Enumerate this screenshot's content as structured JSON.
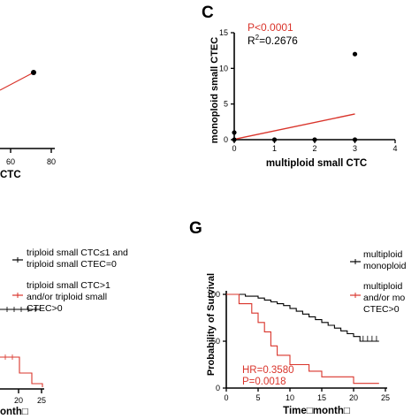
{
  "panels": {
    "c": {
      "letter": "C",
      "stats": {
        "p": "P<0.0001",
        "r2_prefix": "R",
        "r2_sup": "2",
        "r2_value": "=0.2676"
      },
      "chart_data": {
        "type": "scatter",
        "xlabel": "multiploid small CTC",
        "ylabel": "monoploid small CTEC",
        "xlim": [
          0,
          4
        ],
        "ylim": [
          0,
          15
        ],
        "x_ticks": [
          "0",
          "1",
          "2",
          "3",
          "4"
        ],
        "y_ticks": [
          "0",
          "5",
          "10",
          "15"
        ],
        "points": [
          {
            "x": 0,
            "y": 0
          },
          {
            "x": 0,
            "y": 1
          },
          {
            "x": 1,
            "y": 0
          },
          {
            "x": 2,
            "y": 0
          },
          {
            "x": 3,
            "y": 0
          },
          {
            "x": 3,
            "y": 12
          }
        ],
        "fit_line": [
          {
            "x": 0,
            "y": 0.05
          },
          {
            "x": 3,
            "y": 3.6
          }
        ],
        "colors": {
          "points": "#000000",
          "fit": "#d9342b"
        }
      }
    },
    "b_partial": {
      "x_axis_label": "CTC",
      "chart_data": {
        "type": "line",
        "x_ticks": [
          "60",
          "80"
        ],
        "points": [
          {
            "x": 70,
            "y": 2.5
          }
        ],
        "fit_line_color": "#d9342b"
      }
    },
    "f_partial": {
      "legend": [
        {
          "line1": "triploid small CTC≤1 and",
          "line2": "triploid small CTEC=0",
          "color": "#000000"
        },
        {
          "line1": "triploid small CTC>1",
          "line2": "and/or triploid small",
          "line3": "CTEC>0",
          "color": "#d9342b"
        }
      ],
      "x_axis_label": "onth□",
      "chart_data": {
        "type": "line",
        "x_ticks": [
          "20",
          "25"
        ],
        "series": [
          {
            "color": "#000000",
            "x": [
              0,
              26
            ],
            "y": [
              49,
              49
            ]
          },
          {
            "color": "#d9342b",
            "x": [
              0,
              13,
              13,
              19,
              19,
              24
            ],
            "y": [
              27,
              27,
              13,
              13,
              5,
              5
            ]
          }
        ]
      }
    },
    "g": {
      "letter": "G",
      "stats": {
        "hr": "HR=0.3580",
        "p": "P=0.0018"
      },
      "legend": [
        {
          "line1": "multiploid",
          "line2": "monoploid",
          "color": "#000000"
        },
        {
          "line1": "multiploid",
          "line2": "and/or mo",
          "line3": "CTEC>0",
          "color": "#d9342b"
        }
      ],
      "chart_data": {
        "type": "line",
        "xlabel": "Time□month□",
        "ylabel": "Probability of Survival",
        "xlim": [
          0,
          25
        ],
        "ylim": [
          0,
          100
        ],
        "x_ticks": [
          "0",
          "5",
          "10",
          "15",
          "20",
          "25"
        ],
        "y_ticks": [
          "0",
          "50",
          "100"
        ],
        "series": [
          {
            "color": "#000000",
            "x": [
              0,
              3,
              3,
              5,
              5,
              6,
              6,
              7,
              7,
              8,
              8,
              9,
              9,
              10,
              10,
              11,
              11,
              12,
              12,
              13,
              13,
              14,
              14,
              15,
              15,
              16,
              16,
              17,
              17,
              18,
              18,
              19,
              19,
              20,
              20,
              21,
              21,
              24
            ],
            "y": [
              100,
              100,
              98,
              98,
              96,
              96,
              94,
              94,
              92,
              92,
              90,
              90,
              88,
              88,
              85,
              85,
              82,
              82,
              79,
              79,
              76,
              76,
              73,
              73,
              70,
              70,
              67,
              67,
              64,
              64,
              61,
              61,
              58,
              58,
              55,
              55,
              50,
              50
            ]
          },
          {
            "color": "#d9342b",
            "x": [
              0,
              2,
              2,
              4,
              4,
              5,
              5,
              6,
              6,
              7,
              7,
              8,
              8,
              10,
              10,
              13,
              13,
              15,
              15,
              20,
              20,
              24
            ],
            "y": [
              100,
              100,
              90,
              90,
              80,
              80,
              70,
              70,
              60,
              60,
              45,
              45,
              35,
              35,
              25,
              25,
              18,
              18,
              12,
              12,
              5,
              5
            ]
          }
        ]
      }
    }
  }
}
